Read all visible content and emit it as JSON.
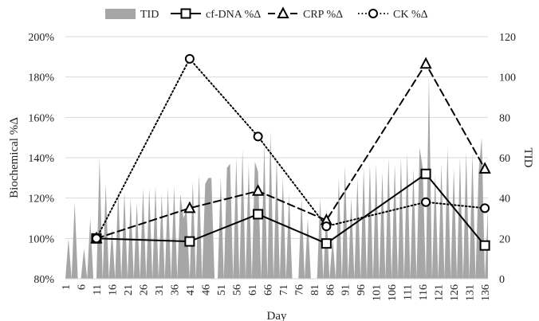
{
  "chart_data": {
    "type": "area+line",
    "legend": {
      "placement": "top",
      "items": [
        {
          "key": "tid",
          "label": "TID",
          "kind": "area"
        },
        {
          "key": "cfdna",
          "label": "cf-DNA %Δ",
          "kind": "line-square"
        },
        {
          "key": "crp",
          "label": "CRP %Δ",
          "kind": "line-triangle"
        },
        {
          "key": "ck",
          "label": "CK %Δ",
          "kind": "line-circle"
        }
      ]
    },
    "xlabel": "Day",
    "ylabel_left": "Biochemical %Δ",
    "ylabel_right": "TID",
    "x_range": [
      1,
      137
    ],
    "x_ticks": [
      1,
      6,
      11,
      16,
      21,
      26,
      31,
      36,
      41,
      46,
      51,
      56,
      61,
      66,
      71,
      76,
      81,
      86,
      91,
      96,
      101,
      106,
      111,
      116,
      121,
      126,
      131,
      136
    ],
    "y_left": {
      "min": 80,
      "max": 200,
      "step": 20,
      "suffix": "%"
    },
    "y_right": {
      "min": 0,
      "max": 120,
      "step": 20
    },
    "grid": true,
    "colors": {
      "tid": "#a6a6a6",
      "line": "#000000",
      "grid": "#d9d9d9"
    },
    "series": [
      {
        "name": "cf-DNA %Δ",
        "key": "cfdna",
        "style": "solid",
        "marker": "square",
        "x": [
          11,
          41,
          63,
          85,
          117,
          136
        ],
        "y": [
          100,
          98.5,
          112,
          97.5,
          132,
          96.5
        ]
      },
      {
        "name": "CRP %Δ",
        "key": "crp",
        "style": "dashed",
        "marker": "triangle",
        "x": [
          11,
          41,
          63,
          85,
          117,
          136
        ],
        "y": [
          100,
          115,
          123.5,
          109,
          186.5,
          134.5
        ]
      },
      {
        "name": "CK %Δ",
        "key": "ck",
        "style": "dotted",
        "marker": "circle",
        "x": [
          11,
          41,
          63,
          85,
          117,
          136
        ],
        "y": [
          100,
          189,
          150.5,
          106,
          118,
          115
        ]
      }
    ],
    "tid": {
      "name": "TID",
      "axis": "right",
      "x": [
        1,
        2,
        3,
        4,
        5,
        6,
        7,
        8,
        9,
        10,
        11,
        12,
        13,
        14,
        15,
        16,
        17,
        18,
        19,
        20,
        21,
        22,
        23,
        24,
        25,
        26,
        27,
        28,
        29,
        30,
        31,
        32,
        33,
        34,
        35,
        36,
        37,
        38,
        39,
        40,
        41,
        42,
        43,
        44,
        45,
        46,
        47,
        48,
        49,
        50,
        51,
        52,
        53,
        54,
        55,
        56,
        57,
        58,
        59,
        60,
        61,
        62,
        63,
        64,
        65,
        66,
        67,
        68,
        69,
        70,
        71,
        72,
        73,
        74,
        75,
        76,
        77,
        78,
        79,
        80,
        81,
        82,
        83,
        84,
        85,
        86,
        87,
        88,
        89,
        90,
        91,
        92,
        93,
        94,
        95,
        96,
        97,
        98,
        99,
        100,
        101,
        102,
        103,
        104,
        105,
        106,
        107,
        108,
        109,
        110,
        111,
        112,
        113,
        114,
        115,
        116,
        117,
        118,
        119,
        120,
        121,
        122,
        123,
        124,
        125,
        126,
        127,
        128,
        129,
        130,
        131,
        132,
        133,
        134,
        135,
        136,
        137
      ],
      "y": [
        0,
        20,
        0,
        38,
        0,
        0,
        15,
        0,
        30,
        0,
        0,
        60,
        0,
        47,
        0,
        25,
        0,
        44,
        0,
        43,
        0,
        40,
        0,
        38,
        0,
        45,
        0,
        45,
        0,
        46,
        0,
        42,
        0,
        45,
        0,
        46,
        0,
        42,
        30,
        34,
        0,
        48,
        0,
        52,
        0,
        47,
        50,
        50,
        0,
        0,
        50,
        0,
        55,
        57,
        0,
        60,
        0,
        64,
        0,
        57,
        0,
        58,
        53,
        0,
        67,
        0,
        73,
        0,
        60,
        0,
        50,
        0,
        42,
        0,
        0,
        0,
        40,
        0,
        30,
        0,
        0,
        0,
        40,
        0,
        35,
        0,
        20,
        0,
        50,
        0,
        56,
        0,
        40,
        0,
        50,
        0,
        55,
        0,
        57,
        0,
        57,
        0,
        53,
        0,
        60,
        0,
        57,
        0,
        60,
        0,
        62,
        0,
        55,
        0,
        65,
        55,
        0,
        100,
        0,
        52,
        0,
        57,
        0,
        65,
        0,
        55,
        0,
        60,
        0,
        63,
        0,
        62,
        0,
        53,
        70,
        0,
        35
      ]
    }
  }
}
